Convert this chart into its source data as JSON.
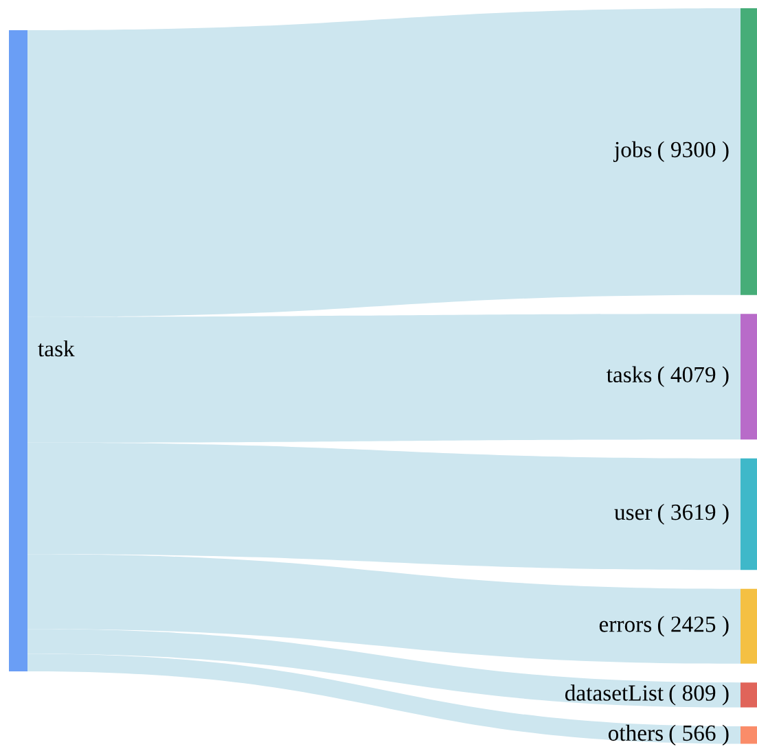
{
  "chart_data": {
    "type": "other",
    "categories": [
      "jobs",
      "tasks",
      "user",
      "errors",
      "datasetList",
      "others"
    ],
    "series": [
      {
        "color": "#cde6ef",
        "values": [
          9300,
          4079,
          3619,
          2425,
          809,
          566
        ],
        "value_labels": [
          "( 9300 )",
          "( 4079 )",
          "( 3619 )",
          "( 2425 )",
          "( 809 )",
          "( 566 )"
        ]
      }
    ],
    "colors": [
      "#46ad78",
      "#b86bc9",
      "#3fb8c9",
      "#f4c043",
      "#e0645a",
      "#fa8c69"
    ],
    "annotations": [
      "task"
    ]
  }
}
